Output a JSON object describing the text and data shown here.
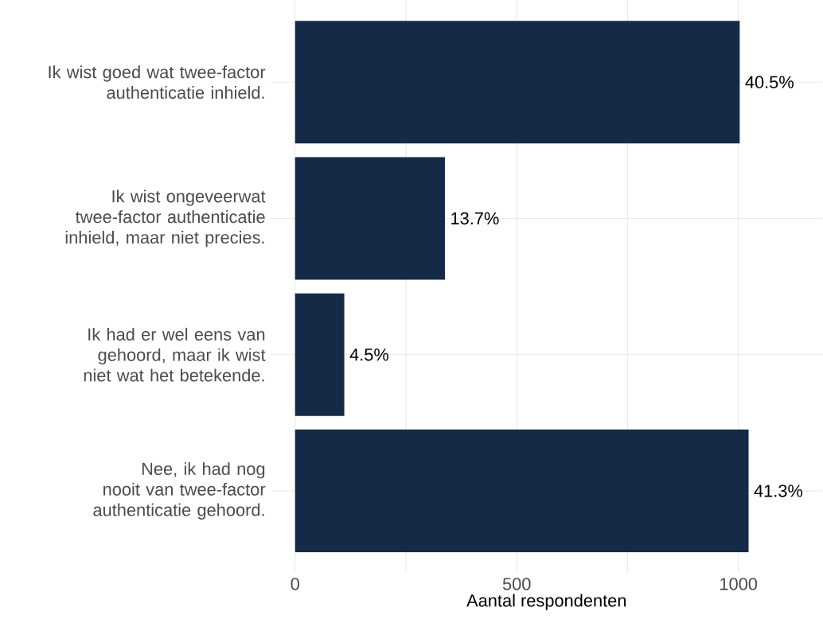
{
  "chart_data": {
    "type": "bar",
    "orientation": "horizontal",
    "xlabel": "Aantal respondenten",
    "categories": [
      "Ik wist goed wat twee-factor authenticatie inhield.",
      "Ik wist ongeveerwat twee-factor authenticatie inhield, maar niet precies.",
      "Ik had er wel eens van gehoord, maar ik wist niet wat het betekende.",
      "Nee, ik had nog nooit van twee-factor authenticatie gehoord."
    ],
    "values": [
      1003,
      338,
      111,
      1023
    ],
    "annotations": [
      {
        "text": "40.5%",
        "x": 1003,
        "y": "Ik wist goed wat twee-factor authenticatie inhield."
      },
      {
        "text": "13.7%",
        "x": 338,
        "y": "Ik wist ongeveerwat twee-factor authenticatie inhield, maar niet precies."
      },
      {
        "text": "4.5%",
        "x": 111,
        "y": "Ik had er wel eens van gehoord, maar ik wist niet wat het betekende."
      },
      {
        "text": "41.3%",
        "x": 1023,
        "y": "Nee, ik had nog nooit van twee-factor authenticatie gehoord."
      }
    ],
    "color": "#152a47",
    "xlim": [
      -55,
      1190
    ],
    "xticks": [
      0,
      {
        "value": 250,
        "label": null
      },
      500,
      {
        "value": 750,
        "label": null
      },
      1000
    ],
    "grid": true
  }
}
